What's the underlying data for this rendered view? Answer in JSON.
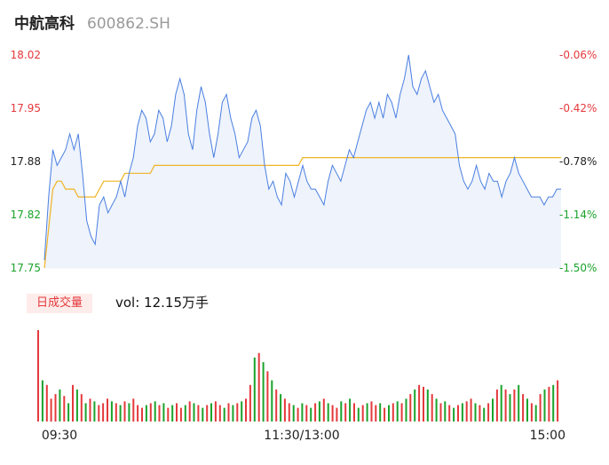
{
  "header": {
    "name": "中航高科",
    "code": "600862.SH"
  },
  "volume_label": {
    "tag": "日成交量",
    "text": "vol: 12.15万手"
  },
  "colors": {
    "price_line": "#4a7fe0",
    "avg_line": "#f0b323",
    "area_fill": "#eef3fc",
    "up": "#e4393c",
    "down": "#1aa32b",
    "neutral": "#222222"
  },
  "chart_data": [
    {
      "type": "line",
      "title": "",
      "y_price_ticks": [
        "18.02",
        "17.95",
        "17.88",
        "17.82",
        "17.75"
      ],
      "y_pct_ticks": [
        "-0.06%",
        "-0.42%",
        "-0.78%",
        "-1.14%",
        "-1.50%"
      ],
      "ylim": [
        17.75,
        18.02
      ],
      "x_ticks": [
        "09:30",
        "11:30/13:00",
        "15:00"
      ],
      "series": [
        {
          "values": [
            17.76,
            17.84,
            17.9,
            17.88,
            17.89,
            17.9,
            17.92,
            17.9,
            17.92,
            17.87,
            17.81,
            17.79,
            17.78,
            17.83,
            17.84,
            17.82,
            17.83,
            17.84,
            17.86,
            17.84,
            17.87,
            17.89,
            17.93,
            17.95,
            17.94,
            17.91,
            17.92,
            17.95,
            17.94,
            17.91,
            17.93,
            17.97,
            17.99,
            17.97,
            17.92,
            17.9,
            17.95,
            17.98,
            17.96,
            17.92,
            17.89,
            17.92,
            17.96,
            17.97,
            17.94,
            17.92,
            17.89,
            17.9,
            17.91,
            17.94,
            17.95,
            17.93,
            17.88,
            17.85,
            17.86,
            17.84,
            17.83,
            17.87,
            17.86,
            17.84,
            17.86,
            17.88,
            17.86,
            17.85,
            17.85,
            17.84,
            17.83,
            17.86,
            17.88,
            17.87,
            17.86,
            17.88,
            17.9,
            17.89,
            17.91,
            17.93,
            17.95,
            17.96,
            17.94,
            17.96,
            17.94,
            17.97,
            17.96,
            17.94,
            17.97,
            17.99,
            18.02,
            17.98,
            17.97,
            17.99,
            18,
            17.98,
            17.96,
            17.97,
            17.95,
            17.94,
            17.93,
            17.92,
            17.88,
            17.86,
            17.85,
            17.86,
            17.88,
            17.86,
            17.85,
            17.87,
            17.86,
            17.86,
            17.84,
            17.86,
            17.87,
            17.89,
            17.87,
            17.86,
            17.85,
            17.84,
            17.84,
            17.84,
            17.83,
            17.84,
            17.84,
            17.85,
            17.85
          ]
        },
        {
          "name": "",
          "values": [
            17.75,
            17.8,
            17.85,
            17.86,
            17.86,
            17.85,
            17.85,
            17.85,
            17.84,
            17.84,
            17.84,
            17.84,
            17.84,
            17.85,
            17.86,
            17.86,
            17.86,
            17.86,
            17.86,
            17.87,
            17.87,
            17.87,
            17.87,
            17.87,
            17.87,
            17.87,
            17.88,
            17.88,
            17.88,
            17.88,
            17.88,
            17.88,
            17.88,
            17.88,
            17.88,
            17.88,
            17.88,
            17.88,
            17.88,
            17.88,
            17.88,
            17.88,
            17.88,
            17.88,
            17.88,
            17.88,
            17.88,
            17.88,
            17.88,
            17.88,
            17.88,
            17.88,
            17.88,
            17.88,
            17.88,
            17.88,
            17.88,
            17.88,
            17.88,
            17.88,
            17.88,
            17.89,
            17.89,
            17.89,
            17.89,
            17.89,
            17.89,
            17.89,
            17.89,
            17.89,
            17.89,
            17.89,
            17.89,
            17.89,
            17.89,
            17.89,
            17.89,
            17.89,
            17.89,
            17.89,
            17.89,
            17.89,
            17.89,
            17.89,
            17.89,
            17.89,
            17.89,
            17.89,
            17.89,
            17.89,
            17.89,
            17.89,
            17.89,
            17.89,
            17.89,
            17.89,
            17.89,
            17.89,
            17.89,
            17.89,
            17.89,
            17.89,
            17.89,
            17.89,
            17.89,
            17.89,
            17.89,
            17.89,
            17.89,
            17.89,
            17.89,
            17.89,
            17.89,
            17.89,
            17.89,
            17.89,
            17.89,
            17.89,
            17.89,
            17.89,
            17.89,
            17.89,
            17.89
          ]
        }
      ]
    },
    {
      "type": "bar",
      "title": "",
      "values": [
        100,
        45,
        40,
        25,
        30,
        35,
        28,
        20,
        40,
        35,
        30,
        20,
        25,
        22,
        18,
        20,
        25,
        22,
        20,
        18,
        22,
        20,
        25,
        18,
        15,
        18,
        20,
        22,
        18,
        20,
        15,
        18,
        20,
        15,
        18,
        22,
        20,
        18,
        15,
        18,
        20,
        22,
        18,
        15,
        20,
        18,
        20,
        22,
        25,
        40,
        70,
        75,
        65,
        55,
        45,
        35,
        30,
        25,
        20,
        18,
        15,
        20,
        18,
        15,
        20,
        22,
        25,
        20,
        18,
        15,
        22,
        20,
        25,
        20,
        15,
        18,
        20,
        22,
        18,
        20,
        15,
        18,
        20,
        22,
        20,
        25,
        30,
        35,
        40,
        38,
        35,
        30,
        25,
        20,
        22,
        18,
        15,
        18,
        20,
        22,
        25,
        20,
        18,
        15,
        20,
        25,
        35,
        40,
        35,
        30,
        35,
        40,
        30,
        25,
        20,
        18,
        30,
        35,
        38,
        40,
        45
      ],
      "value_colors": [
        "up",
        "down",
        "up",
        "up",
        "up",
        "down",
        "up",
        "down",
        "up",
        "down",
        "up",
        "down",
        "up",
        "down",
        "up",
        "up",
        "up",
        "down",
        "up",
        "down",
        "up",
        "down",
        "up",
        "up",
        "up",
        "down",
        "up",
        "down",
        "up",
        "down",
        "up",
        "down",
        "up",
        "up",
        "down",
        "up",
        "down",
        "up",
        "down",
        "up",
        "down",
        "up",
        "up",
        "down",
        "up",
        "down",
        "up",
        "down",
        "up",
        "up",
        "down",
        "up",
        "down",
        "up",
        "down",
        "up",
        "down",
        "up",
        "up",
        "down",
        "up",
        "down",
        "up",
        "down",
        "up",
        "down",
        "up",
        "down",
        "up",
        "up",
        "down",
        "up",
        "down",
        "up",
        "down",
        "up",
        "down",
        "up",
        "up",
        "down",
        "up",
        "down",
        "up",
        "down",
        "up",
        "down",
        "up",
        "down",
        "up",
        "up",
        "down",
        "up",
        "down",
        "up",
        "down",
        "up",
        "down",
        "up",
        "down",
        "up",
        "up",
        "down",
        "up",
        "down",
        "up",
        "down",
        "up",
        "down",
        "up",
        "down",
        "up",
        "down",
        "up",
        "down",
        "up",
        "down",
        "up",
        "down",
        "up",
        "down",
        "up"
      ]
    }
  ]
}
